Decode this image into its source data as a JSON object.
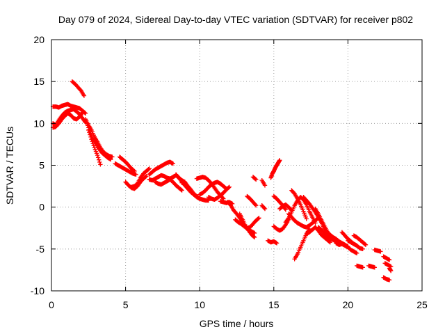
{
  "chart_data": {
    "type": "scatter",
    "title": "Day 079 of 2024, Sidereal Day-to-day VTEC variation (SDTVAR) for receiver p802",
    "xlabel": "GPS time / hours",
    "ylabel": "SDTVAR / TECUs",
    "xlim": [
      0,
      25
    ],
    "ylim": [
      -10,
      20
    ],
    "xticks": [
      0,
      5,
      10,
      15,
      20,
      25
    ],
    "yticks": [
      -10,
      -5,
      0,
      5,
      10,
      15,
      20
    ],
    "xtick_labels": [
      "0",
      "5",
      "10",
      "15",
      "20",
      "25"
    ],
    "ytick_labels": [
      "-10",
      "-5",
      "0",
      "5",
      "10",
      "15",
      "20"
    ],
    "grid": true,
    "marker": "+",
    "color": "#ff0000",
    "series": [
      {
        "name": "SDTVAR",
        "segments": [
          {
            "x": [
              0.1,
              0.3,
              0.5,
              0.7,
              0.9,
              1.1,
              1.3,
              1.5,
              1.7,
              1.9,
              2.1,
              2.3
            ],
            "y": [
              12.0,
              12.0,
              11.9,
              12.1,
              12.2,
              12.3,
              12.1,
              12.0,
              11.9,
              11.8,
              11.5,
              11.2
            ]
          },
          {
            "x": [
              0.1,
              0.3,
              0.5,
              0.7,
              0.9,
              1.1,
              1.3,
              1.5,
              1.7,
              1.9,
              2.1
            ],
            "y": [
              9.5,
              9.6,
              10.0,
              10.5,
              10.9,
              11.2,
              11.0,
              10.6,
              10.5,
              10.8,
              11.3
            ]
          },
          {
            "x": [
              0.1,
              0.3,
              0.5,
              0.7,
              0.9,
              1.1,
              1.3,
              1.5,
              1.7,
              1.9,
              2.1,
              2.3
            ],
            "y": [
              10.0,
              9.8,
              10.4,
              10.9,
              11.3,
              11.5,
              11.6,
              11.7,
              11.4,
              11.1,
              10.6,
              10.1
            ]
          },
          {
            "x": [
              1.4,
              1.6,
              1.8,
              2.0,
              2.2
            ],
            "y": [
              15.0,
              14.7,
              14.3,
              13.9,
              13.3
            ]
          },
          {
            "x": [
              2.3,
              2.5,
              2.7,
              2.9,
              3.1,
              3.3,
              3.5,
              3.7,
              3.9,
              4.1
            ],
            "y": [
              10.5,
              9.8,
              9.2,
              8.4,
              7.8,
              7.1,
              6.6,
              6.3,
              6.1,
              6.0
            ]
          },
          {
            "x": [
              2.4,
              2.6,
              2.8,
              3.0,
              3.2,
              3.4,
              3.6,
              3.8,
              4.0
            ],
            "y": [
              10.0,
              9.0,
              8.2,
              7.6,
              7.0,
              6.5,
              6.2,
              5.9,
              5.7
            ]
          },
          {
            "x": [
              2.5,
              2.7,
              2.9,
              3.1,
              3.3
            ],
            "y": [
              9.2,
              8.1,
              7.1,
              6.2,
              5.1
            ]
          },
          {
            "x": [
              4.3,
              4.5,
              4.7,
              4.9,
              5.1,
              5.3,
              5.5,
              5.7
            ],
            "y": [
              5.2,
              5.0,
              4.8,
              4.6,
              4.4,
              4.2,
              4.0,
              3.9
            ]
          },
          {
            "x": [
              4.6,
              4.8,
              5.0,
              5.2,
              5.4,
              5.6
            ],
            "y": [
              6.0,
              5.7,
              5.4,
              5.0,
              4.6,
              4.3
            ]
          },
          {
            "x": [
              5.0,
              5.2,
              5.4,
              5.6,
              5.8,
              6.0,
              6.2,
              6.4
            ],
            "y": [
              3.0,
              2.6,
              2.3,
              2.2,
              2.5,
              3.0,
              3.4,
              3.7
            ]
          },
          {
            "x": [
              5.4,
              5.6,
              5.8,
              6.0,
              6.2,
              6.4,
              6.6
            ],
            "y": [
              2.4,
              2.5,
              2.8,
              3.5,
              4.0,
              4.3,
              4.6
            ]
          },
          {
            "x": [
              6.6,
              6.8,
              7.0,
              7.2,
              7.4,
              7.6,
              7.8,
              8.0,
              8.2
            ],
            "y": [
              3.9,
              4.2,
              4.5,
              4.7,
              4.9,
              5.1,
              5.3,
              5.4,
              5.2
            ]
          },
          {
            "x": [
              6.6,
              6.8,
              7.0,
              7.2,
              7.4,
              7.6,
              7.8,
              8.0,
              8.2,
              8.4,
              8.6,
              8.8,
              9.0
            ],
            "y": [
              3.3,
              3.2,
              3.4,
              3.6,
              3.8,
              3.7,
              3.5,
              3.4,
              3.6,
              3.8,
              3.5,
              3.2,
              3.0
            ]
          },
          {
            "x": [
              7.0,
              7.2,
              7.4,
              7.6,
              7.8,
              8.0,
              8.2,
              8.4,
              8.6,
              8.8
            ],
            "y": [
              3.0,
              2.8,
              2.7,
              2.9,
              3.1,
              3.3,
              3.0,
              2.6,
              2.3,
              2.0
            ]
          },
          {
            "x": [
              8.4,
              8.6,
              8.8,
              9.0,
              9.2,
              9.4,
              9.6,
              9.8,
              10.0
            ],
            "y": [
              3.9,
              3.5,
              3.0,
              2.6,
              2.2,
              1.8,
              1.5,
              1.2,
              1.0
            ]
          },
          {
            "x": [
              8.8,
              9.0,
              9.2,
              9.4,
              9.6,
              9.8,
              10.0,
              10.2,
              10.4,
              10.6
            ],
            "y": [
              2.9,
              3.0,
              2.5,
              2.1,
              1.6,
              1.3,
              1.0,
              0.9,
              0.8,
              0.8
            ]
          },
          {
            "x": [
              9.8,
              10.0,
              10.2,
              10.4,
              10.6,
              10.8,
              11.0,
              11.2,
              11.4,
              11.6
            ],
            "y": [
              3.4,
              3.5,
              3.6,
              3.5,
              3.2,
              2.8,
              2.3,
              1.8,
              1.4,
              1.0
            ]
          },
          {
            "x": [
              10.0,
              10.2,
              10.4,
              10.6,
              10.8,
              11.0,
              11.2,
              11.4,
              11.6,
              11.8
            ],
            "y": [
              1.5,
              1.7,
              2.0,
              2.4,
              2.7,
              2.9,
              3.0,
              2.8,
              2.5,
              2.2
            ]
          },
          {
            "x": [
              10.6,
              10.8,
              11.0,
              11.2,
              11.4,
              11.6,
              11.8,
              12.0
            ],
            "y": [
              1.2,
              1.0,
              0.9,
              1.1,
              1.4,
              1.7,
              2.1,
              2.4
            ]
          },
          {
            "x": [
              11.4,
              11.6,
              11.8,
              12.0,
              12.2
            ],
            "y": [
              0.7,
              0.6,
              0.5,
              0.6,
              0.4
            ]
          },
          {
            "x": [
              11.9,
              12.1,
              12.3,
              12.5,
              12.7,
              12.9,
              13.1,
              13.3,
              13.5,
              13.7
            ],
            "y": [
              0.6,
              0.2,
              -0.4,
              -0.8,
              -1.3,
              -1.8,
              -2.4,
              -2.8,
              -3.3,
              -3.6
            ]
          },
          {
            "x": [
              12.4,
              12.6,
              12.8,
              13.0,
              13.2,
              13.4,
              13.6,
              13.8,
              14.0
            ],
            "y": [
              -1.5,
              -1.8,
              -2.0,
              -2.3,
              -2.5,
              -2.4,
              -2.0,
              -1.6,
              -1.3
            ]
          },
          {
            "x": [
              12.7,
              12.9,
              13.1,
              13.3,
              13.5,
              13.7
            ],
            "y": [
              -0.8,
              -1.5,
              -2.3,
              -2.7,
              -2.9,
              -3.1
            ]
          },
          {
            "x": [
              13.2,
              13.4,
              13.6,
              13.8
            ],
            "y": [
              1.3,
              1.0,
              0.6,
              0.2
            ]
          },
          {
            "x": [
              13.6,
              13.8
            ],
            "y": [
              3.6,
              3.3
            ]
          },
          {
            "x": [
              14.2,
              14.4
            ],
            "y": [
              3.2,
              2.6
            ]
          },
          {
            "x": [
              14.2,
              14.4
            ],
            "y": [
              0.2,
              -0.2
            ]
          },
          {
            "x": [
              14.6,
              14.8,
              15.0,
              15.2
            ],
            "y": [
              -4.0,
              -4.2,
              -4.1,
              -4.3
            ]
          },
          {
            "x": [
              14.8,
              14.9,
              15.0,
              15.1,
              15.2,
              15.3,
              15.4
            ],
            "y": [
              3.5,
              4.0,
              4.3,
              4.7,
              5.0,
              5.3,
              5.6
            ]
          },
          {
            "x": [
              15.0,
              15.2,
              15.4,
              15.6,
              15.8,
              16.0
            ],
            "y": [
              -2.3,
              -2.6,
              -2.8,
              -2.6,
              -2.1,
              -1.5
            ]
          },
          {
            "x": [
              15.0,
              15.2,
              15.4,
              15.6,
              15.8
            ],
            "y": [
              1.3,
              1.0,
              0.6,
              0.2,
              -0.3
            ]
          },
          {
            "x": [
              15.4,
              15.6,
              15.8,
              16.0,
              16.2
            ],
            "y": [
              -0.2,
              0.1,
              0.3,
              0.0,
              -0.4
            ]
          },
          {
            "x": [
              15.8,
              16.0,
              16.2,
              16.4,
              16.6,
              16.8,
              17.0,
              17.2,
              17.4,
              17.6,
              17.8
            ],
            "y": [
              -1.8,
              -1.3,
              -0.6,
              0.2,
              0.8,
              1.2,
              0.9,
              0.3,
              -0.5,
              -1.2,
              -1.9
            ]
          },
          {
            "x": [
              16.0,
              16.2,
              16.4,
              16.6,
              16.8,
              17.0,
              17.2,
              17.4,
              17.6,
              17.8,
              18.0
            ],
            "y": [
              -0.8,
              -1.2,
              -1.6,
              -1.9,
              -2.1,
              -2.3,
              -2.4,
              -2.2,
              -1.9,
              -1.6,
              -1.3
            ]
          },
          {
            "x": [
              16.4,
              16.6,
              16.8,
              17.0,
              17.2,
              17.4
            ],
            "y": [
              -6.2,
              -5.6,
              -4.8,
              -4.0,
              -3.2,
              -2.6
            ]
          },
          {
            "x": [
              16.2,
              16.4,
              16.6,
              16.8,
              17.0,
              17.2
            ],
            "y": [
              2.0,
              1.6,
              1.0,
              0.3,
              -0.5,
              -1.4
            ]
          },
          {
            "x": [
              17.0,
              17.2,
              17.4,
              17.6,
              17.8,
              18.0,
              18.2,
              18.4,
              18.6
            ],
            "y": [
              1.2,
              0.8,
              0.4,
              -0.1,
              -0.6,
              -1.2,
              -1.8,
              -2.5,
              -3.0
            ]
          },
          {
            "x": [
              17.2,
              17.4,
              17.6,
              17.8,
              18.0,
              18.2,
              18.4,
              18.6,
              18.8
            ],
            "y": [
              -3.2,
              -3.0,
              -2.7,
              -2.4,
              -2.8,
              -3.3,
              -3.6,
              -3.9,
              -4.2
            ]
          },
          {
            "x": [
              17.8,
              18.0,
              18.2,
              18.4,
              18.6,
              18.8,
              19.0
            ],
            "y": [
              -0.2,
              -0.8,
              -1.5,
              -2.2,
              -2.9,
              -3.4,
              -3.9
            ]
          },
          {
            "x": [
              18.0,
              18.2,
              18.4,
              18.6,
              18.8,
              19.0,
              19.2
            ],
            "y": [
              -2.4,
              -2.7,
              -3.1,
              -3.4,
              -3.7,
              -3.9,
              -4.1
            ]
          },
          {
            "x": [
              18.4,
              18.6,
              18.8,
              19.0,
              19.2,
              19.4,
              19.6,
              19.8,
              20.0
            ],
            "y": [
              -2.8,
              -3.1,
              -3.3,
              -3.6,
              -3.8,
              -4.1,
              -4.3,
              -4.5,
              -4.7
            ]
          },
          {
            "x": [
              19.6,
              19.8,
              20.0,
              20.2,
              20.4,
              20.6
            ],
            "y": [
              -3.0,
              -3.4,
              -3.8,
              -4.1,
              -4.4,
              -4.6
            ]
          },
          {
            "x": [
              19.2,
              19.4,
              19.6,
              19.8,
              20.0,
              20.2,
              20.4,
              20.6
            ],
            "y": [
              -4.3,
              -4.5,
              -4.4,
              -4.6,
              -4.8,
              -5.1,
              -5.3,
              -5.5
            ]
          },
          {
            "x": [
              20.4,
              20.6,
              20.8,
              21.0,
              21.2
            ],
            "y": [
              -3.4,
              -3.6,
              -3.9,
              -4.2,
              -4.5
            ]
          },
          {
            "x": [
              20.0,
              20.2,
              20.4,
              20.6,
              20.8,
              21.0
            ],
            "y": [
              -4.0,
              -4.2,
              -4.4,
              -4.6,
              -4.9,
              -5.0
            ]
          },
          {
            "x": [
              20.6,
              20.8,
              21.0
            ],
            "y": [
              -7.0,
              -7.1,
              -7.2
            ]
          },
          {
            "x": [
              21.4,
              21.6,
              21.8
            ],
            "y": [
              -7.0,
              -7.1,
              -7.2
            ]
          },
          {
            "x": [
              21.8,
              22.0,
              22.2
            ],
            "y": [
              -5.1,
              -5.2,
              -5.3
            ]
          },
          {
            "x": [
              22.4,
              22.6,
              22.8
            ],
            "y": [
              -5.9,
              -6.1,
              -6.3
            ]
          },
          {
            "x": [
              22.5,
              22.7,
              22.9
            ],
            "y": [
              -6.7,
              -6.9,
              -7.1
            ]
          },
          {
            "x": [
              22.4,
              22.6,
              22.8
            ],
            "y": [
              -8.4,
              -8.6,
              -8.7
            ]
          },
          {
            "x": [
              22.8,
              22.9
            ],
            "y": [
              -7.3,
              -7.6
            ]
          }
        ]
      }
    ]
  }
}
